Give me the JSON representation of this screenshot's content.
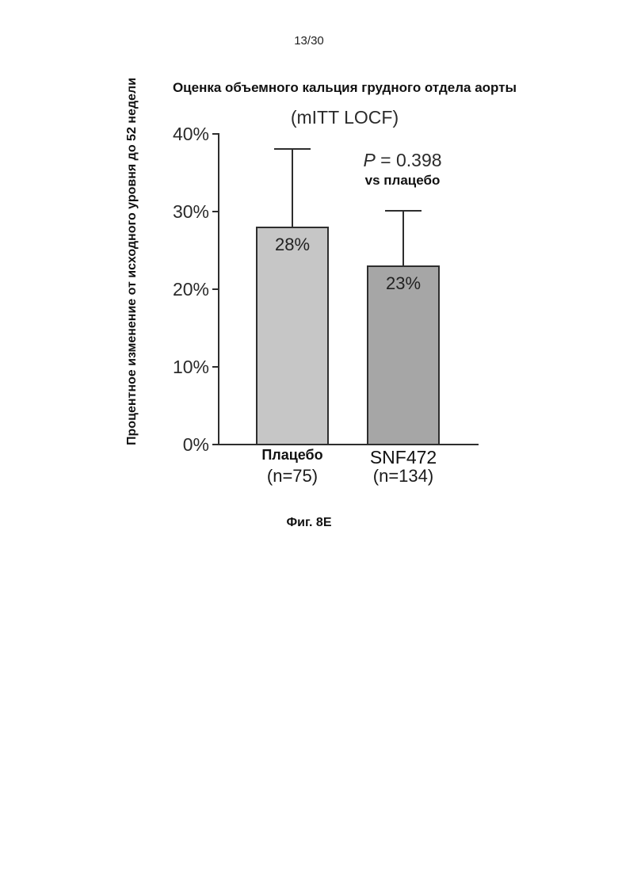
{
  "page": {
    "number": "13/30"
  },
  "caption": "Фиг. 8E",
  "chart_data": {
    "type": "bar",
    "title": "Оценка объемного кальция грудного отдела аорты",
    "subtitle": "(mITT LOCF)",
    "ylabel": "Процентное изменение от исходного уровня до 52 недели",
    "xlabel": "",
    "ylim": [
      0,
      40
    ],
    "yticks": [
      0,
      10,
      20,
      30,
      40
    ],
    "ytick_suffix": "%",
    "grid": false,
    "legend": false,
    "categories": [
      "Плацебо",
      "SNF472"
    ],
    "values": [
      28,
      23
    ],
    "bars": [
      {
        "slug": "placebo",
        "label": "Плацебо",
        "sublabel": "(n=75)",
        "value": 28,
        "value_label": "28%",
        "error_bar_top": 38,
        "fill": "#c6c6c6"
      },
      {
        "slug": "snf472",
        "label": "SNF472",
        "sublabel": "(n=134)",
        "value": 23,
        "value_label": "23%",
        "error_bar_top": 30,
        "fill": "#a6a6a6"
      }
    ],
    "annotation": {
      "p_symbol": "P",
      "p_rest": " = 0.398",
      "line2": "vs плацебо"
    },
    "colors": {
      "axis": "#2e2e2e",
      "bar_border": "#2e2e2e",
      "text": "#111111"
    }
  }
}
